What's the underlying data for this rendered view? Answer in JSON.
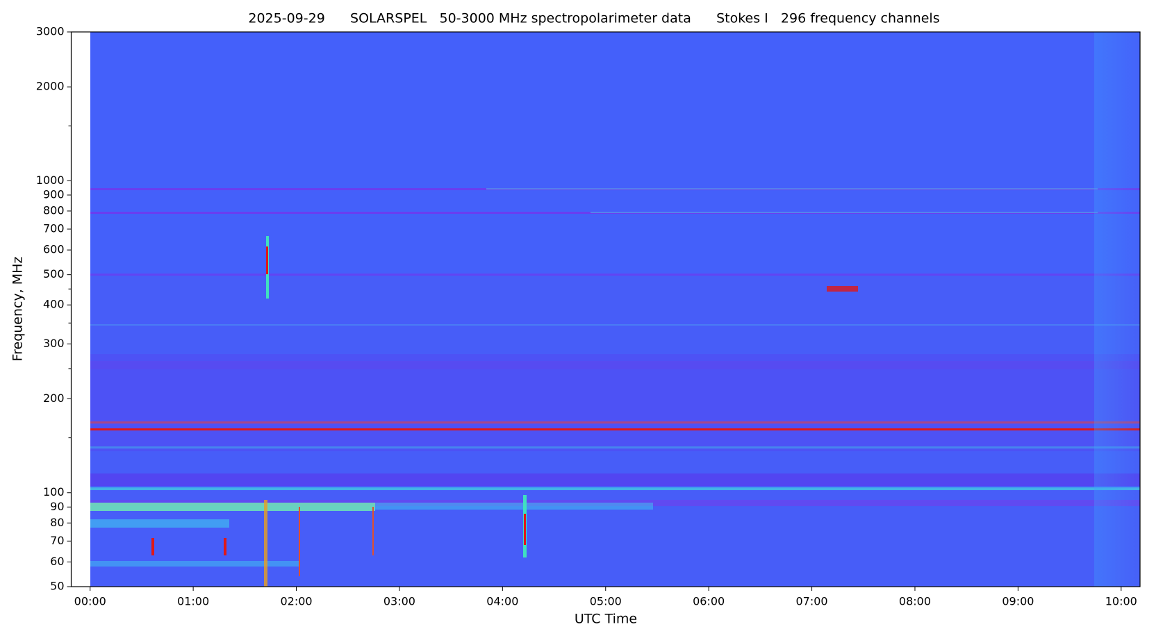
{
  "chart_data": {
    "type": "spectrogram",
    "title": "2025-09-29      SOLARSPEL   50-3000 MHz spectropolarimeter data      Stokes I   296 frequency channels",
    "x_label": "UTC Time",
    "y_label": "Frequency, MHz",
    "y_scale": "log",
    "xlim": [
      -11,
      611
    ],
    "xticks": [
      {
        "value": 0,
        "label": "00:00"
      },
      {
        "value": 60,
        "label": "01:00"
      },
      {
        "value": 120,
        "label": "02:00"
      },
      {
        "value": 180,
        "label": "03:00"
      },
      {
        "value": 240,
        "label": "04:00"
      },
      {
        "value": 300,
        "label": "05:00"
      },
      {
        "value": 360,
        "label": "06:00"
      },
      {
        "value": 420,
        "label": "07:00"
      },
      {
        "value": 480,
        "label": "08:00"
      },
      {
        "value": 540,
        "label": "09:00"
      },
      {
        "value": 600,
        "label": "10:00"
      }
    ],
    "ylim": [
      50,
      3000
    ],
    "yticks": [
      50,
      60,
      70,
      80,
      90,
      100,
      200,
      300,
      400,
      500,
      600,
      700,
      800,
      900,
      1000,
      2000,
      3000
    ],
    "yminor_ticks": [
      150,
      250,
      350,
      450,
      1500
    ],
    "grid": false
  }
}
